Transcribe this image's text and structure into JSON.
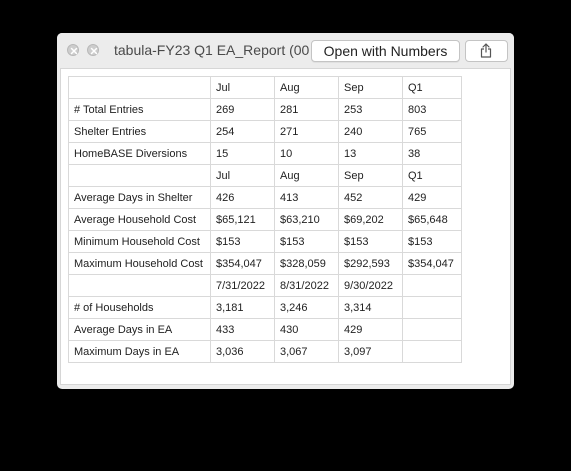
{
  "window": {
    "title": "tabula-FY23 Q1 EA_Report (00...",
    "open_button_label": "Open with Numbers",
    "share_icon": "share-icon",
    "close_icon": "close-icon",
    "minimize_icon": "minimize-icon"
  },
  "table": {
    "rows": [
      [
        "",
        "Jul",
        "Aug",
        "Sep",
        "Q1"
      ],
      [
        "# Total Entries",
        "269",
        "281",
        "253",
        "803"
      ],
      [
        "Shelter Entries",
        "254",
        "271",
        "240",
        "765"
      ],
      [
        "HomeBASE Diversions",
        "15",
        "10",
        "13",
        "38"
      ],
      [
        "",
        "Jul",
        "Aug",
        "Sep",
        "Q1"
      ],
      [
        "Average Days in Shelter",
        "426",
        "413",
        "452",
        "429"
      ],
      [
        "Average Household Cost",
        "$65,121",
        "$63,210",
        "$69,202",
        "$65,648"
      ],
      [
        "Minimum Household Cost",
        "$153",
        "$153",
        "$153",
        "$153"
      ],
      [
        "Maximum Household Cost",
        "$354,047",
        "$328,059",
        "$292,593",
        "$354,047"
      ],
      [
        "",
        "7/31/2022",
        "8/31/2022",
        "9/30/2022",
        ""
      ],
      [
        "# of Households",
        "3,181",
        "3,246",
        "3,314",
        ""
      ],
      [
        "Average Days in EA",
        "433",
        "430",
        "429",
        ""
      ],
      [
        "Maximum Days in EA",
        "3,036",
        "3,067",
        "3,097",
        ""
      ]
    ]
  }
}
